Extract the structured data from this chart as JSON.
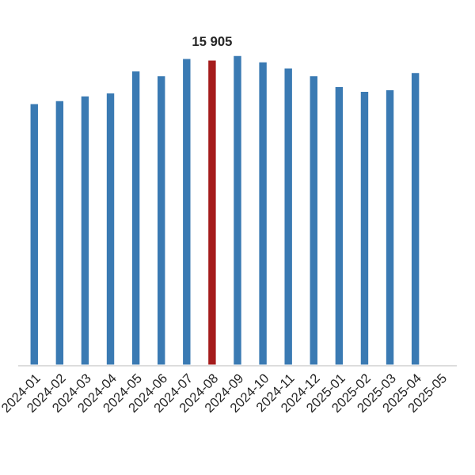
{
  "chart_data": {
    "type": "bar",
    "categories": [
      "2024-01",
      "2024-02",
      "2024-03",
      "2024-04",
      "2024-05",
      "2024-06",
      "2024-07",
      "2024-08",
      "2024-09",
      "2024-10",
      "2024-11",
      "2024-12",
      "2025-01",
      "2025-02",
      "2025-03",
      "2025-04",
      "2025-05"
    ],
    "values": [
      13650,
      13800,
      14050,
      14200,
      15340,
      15100,
      15990,
      15905,
      16150,
      15820,
      15500,
      15100,
      14530,
      14290,
      14370,
      15260,
      null
    ],
    "colors": [
      "#3a7ab3",
      "#3a7ab3",
      "#3a7ab3",
      "#3a7ab3",
      "#3a7ab3",
      "#3a7ab3",
      "#3a7ab3",
      "#a51c1c",
      "#3a7ab3",
      "#3a7ab3",
      "#3a7ab3",
      "#3a7ab3",
      "#3a7ab3",
      "#3a7ab3",
      "#3a7ab3",
      "#3a7ab3",
      "#3a7ab3"
    ],
    "value_labels": [
      null,
      null,
      null,
      null,
      null,
      null,
      null,
      "15 905",
      null,
      null,
      null,
      null,
      null,
      null,
      null,
      null,
      null
    ],
    "grid": false,
    "legend": false
  }
}
